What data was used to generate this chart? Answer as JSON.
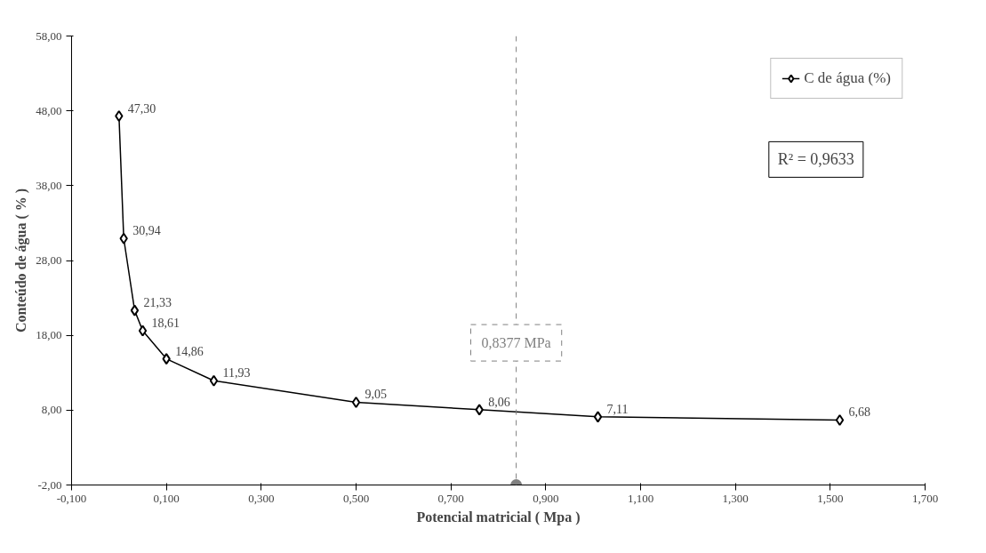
{
  "chart_data": {
    "type": "line",
    "xlabel": "Potencial matricial ( Mpa )",
    "ylabel": "Conteúdo de água ( % )",
    "x": [
      0.0,
      0.01,
      0.033,
      0.05,
      0.1,
      0.2,
      0.5,
      0.76,
      1.01,
      1.52
    ],
    "series": [
      {
        "name": "C de água (%)",
        "color": "#000000",
        "values": [
          47.3,
          30.94,
          21.33,
          18.61,
          14.86,
          11.93,
          9.05,
          8.06,
          7.11,
          6.68
        ],
        "value_labels": [
          "47,30",
          "30,94",
          "21,33",
          "18,61",
          "14,86",
          "11,93",
          "9,05",
          "8,06",
          "7,11",
          "6,68"
        ]
      },
      {
        "type": "scatter",
        "x": [
          0.8377
        ],
        "color": "#808080",
        "marker": "circle",
        "values": [
          -2
        ]
      }
    ],
    "xlim": [
      -0.1,
      1.7
    ],
    "xticks": [
      {
        "value": -0.1,
        "label": "-0,100"
      },
      {
        "value": 0.1,
        "label": "0,100"
      },
      {
        "value": 0.3,
        "label": "0,300"
      },
      {
        "value": 0.5,
        "label": "0,500"
      },
      {
        "value": 0.7,
        "label": "0,700"
      },
      {
        "value": 0.9,
        "label": "0,900"
      },
      {
        "value": 1.1,
        "label": "1,100"
      },
      {
        "value": 1.3,
        "label": "1,300"
      },
      {
        "value": 1.5,
        "label": "1,500"
      },
      {
        "value": 1.7,
        "label": "1,700"
      }
    ],
    "ylim": [
      -2,
      58
    ],
    "yticks": [
      {
        "value": -2,
        "label": "-2,00"
      },
      {
        "value": 8,
        "label": "8,00"
      },
      {
        "value": 18,
        "label": "18,00"
      },
      {
        "value": 28,
        "label": "28,00"
      },
      {
        "value": 38,
        "label": "38,00"
      },
      {
        "value": 48,
        "label": "48,00"
      },
      {
        "value": 58,
        "label": "58,00"
      }
    ],
    "ref_lines": [
      {
        "axis": "x",
        "value": 0.8377,
        "label": "0,8377 MPa",
        "color": "#808080",
        "line_style": "dashed"
      }
    ],
    "annotations": [
      "R² = 0,9633"
    ],
    "marker": "diamond",
    "line_style": "solid",
    "legend": "top right",
    "grid": false
  }
}
